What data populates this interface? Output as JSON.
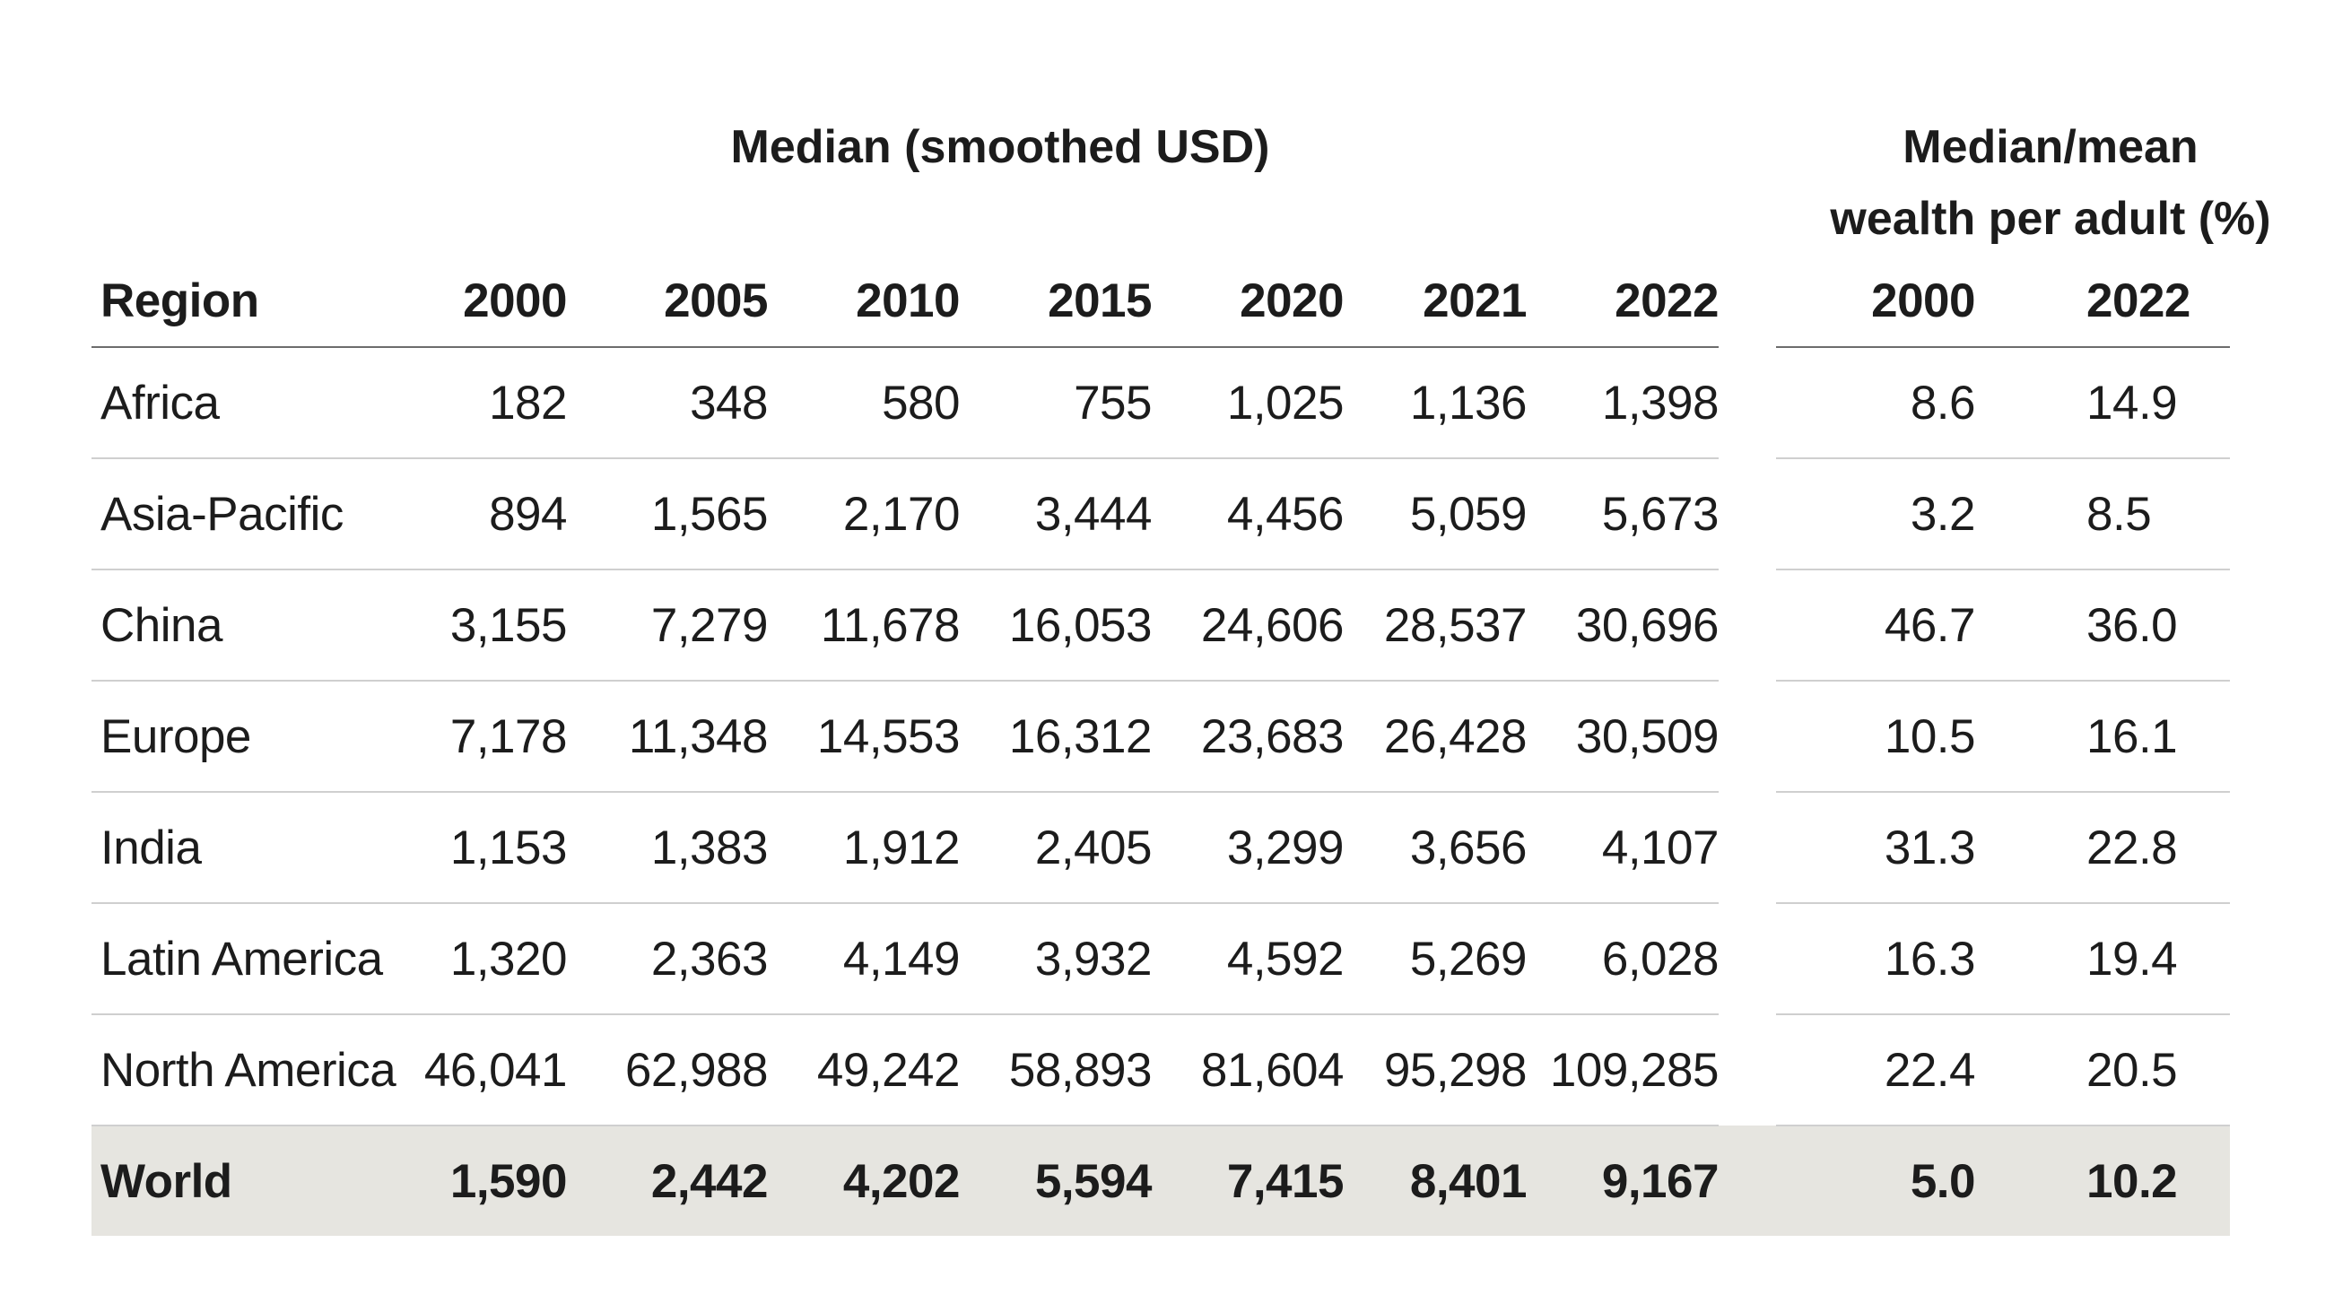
{
  "headers": {
    "median_group": "Median (smoothed USD)",
    "ratio_group_line1": "Median/mean",
    "ratio_group_line2": "wealth per adult (%)",
    "region": "Region",
    "median_years": [
      "2000",
      "2005",
      "2010",
      "2015",
      "2020",
      "2021",
      "2022"
    ],
    "ratio_years": [
      "2000",
      "2022"
    ]
  },
  "rows": [
    {
      "region": "Africa",
      "median": [
        "182",
        "348",
        "580",
        "755",
        "1,025",
        "1,136",
        "1,398"
      ],
      "ratio": [
        "8.6",
        "14.9"
      ]
    },
    {
      "region": "Asia-Pacific",
      "median": [
        "894",
        "1,565",
        "2,170",
        "3,444",
        "4,456",
        "5,059",
        "5,673"
      ],
      "ratio": [
        "3.2",
        "8.5"
      ]
    },
    {
      "region": "China",
      "median": [
        "3,155",
        "7,279",
        "11,678",
        "16,053",
        "24,606",
        "28,537",
        "30,696"
      ],
      "ratio": [
        "46.7",
        "36.0"
      ]
    },
    {
      "region": "Europe",
      "median": [
        "7,178",
        "11,348",
        "14,553",
        "16,312",
        "23,683",
        "26,428",
        "30,509"
      ],
      "ratio": [
        "10.5",
        "16.1"
      ]
    },
    {
      "region": "India",
      "median": [
        "1,153",
        "1,383",
        "1,912",
        "2,405",
        "3,299",
        "3,656",
        "4,107"
      ],
      "ratio": [
        "31.3",
        "22.8"
      ]
    },
    {
      "region": "Latin America",
      "median": [
        "1,320",
        "2,363",
        "4,149",
        "3,932",
        "4,592",
        "5,269",
        "6,028"
      ],
      "ratio": [
        "16.3",
        "19.4"
      ]
    },
    {
      "region": "North America",
      "median": [
        "46,041",
        "62,988",
        "49,242",
        "58,893",
        "81,604",
        "95,298",
        "109,285"
      ],
      "ratio": [
        "22.4",
        "20.5"
      ]
    }
  ],
  "world": {
    "region": "World",
    "median": [
      "1,590",
      "2,442",
      "4,202",
      "5,594",
      "7,415",
      "8,401",
      "9,167"
    ],
    "ratio": [
      "5.0",
      "10.2"
    ]
  },
  "colors": {
    "world_row_bg": "#e6e5e0",
    "header_rule": "#6d6d6d",
    "row_rule": "#cfcfcf"
  }
}
